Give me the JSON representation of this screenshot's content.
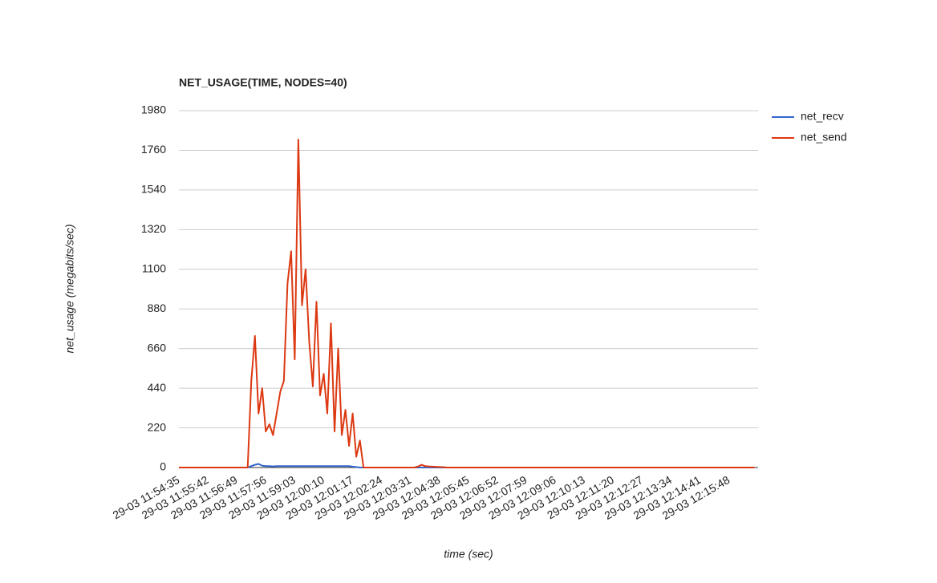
{
  "chart_data": {
    "type": "line",
    "title": "NET_USAGE(TIME, NODES=40)",
    "x_label": "time (sec)",
    "y_label": "net_usage (megabits/sec)",
    "categories": [
      "29-03 11:54:35",
      null,
      null,
      null,
      null,
      null,
      null,
      null,
      "29-03 11:55:42",
      null,
      null,
      null,
      null,
      null,
      null,
      null,
      "29-03 11:56:49",
      null,
      null,
      null,
      null,
      null,
      null,
      null,
      "29-03 11:57:56",
      null,
      null,
      null,
      null,
      null,
      null,
      null,
      "29-03 11:59:03",
      null,
      null,
      null,
      null,
      null,
      null,
      null,
      "29-03 12:00:10",
      null,
      null,
      null,
      null,
      null,
      null,
      null,
      "29-03 12:01:17",
      null,
      null,
      null,
      null,
      null,
      null,
      null,
      "29-03 12:02:24",
      null,
      null,
      null,
      null,
      null,
      null,
      null,
      "29-03 12:03:31",
      null,
      null,
      null,
      null,
      null,
      null,
      null,
      "29-03 12:04:38",
      null,
      null,
      null,
      null,
      null,
      null,
      null,
      "29-03 12:05:45",
      null,
      null,
      null,
      null,
      null,
      null,
      null,
      "29-03 12:06:52",
      null,
      null,
      null,
      null,
      null,
      null,
      null,
      "29-03 12:07:59",
      null,
      null,
      null,
      null,
      null,
      null,
      null,
      "29-03 12:09:06",
      null,
      null,
      null,
      null,
      null,
      null,
      null,
      "29-03 12:10:13",
      null,
      null,
      null,
      null,
      null,
      null,
      null,
      "29-03 12:11:20",
      null,
      null,
      null,
      null,
      null,
      null,
      null,
      "29-03 12:12:27",
      null,
      null,
      null,
      null,
      null,
      null,
      null,
      "29-03 12:13:34",
      null,
      null,
      null,
      null,
      null,
      null,
      null,
      "29-03 12:14:41",
      null,
      null,
      null,
      null,
      null,
      null,
      null,
      "29-03 12:15:48",
      null,
      null,
      null,
      null,
      null,
      null,
      null
    ],
    "series": [
      {
        "name": "net_recv",
        "color": "#3366cc",
        "values": [
          0,
          0,
          0,
          0,
          0,
          0,
          0,
          0,
          0,
          0,
          0,
          0,
          0,
          0,
          0,
          0,
          0,
          0,
          0,
          0,
          8,
          15,
          20,
          10,
          8,
          8,
          6,
          8,
          8,
          8,
          8,
          8,
          8,
          8,
          8,
          8,
          8,
          8,
          8,
          8,
          8,
          8,
          8,
          8,
          8,
          8,
          8,
          8,
          5,
          3,
          0,
          0,
          0,
          0,
          0,
          0,
          0,
          0,
          0,
          0,
          0,
          0,
          0,
          0,
          0,
          0,
          0,
          0,
          0,
          0,
          0,
          0,
          0,
          0,
          0,
          0,
          0,
          0,
          0,
          0,
          0,
          0,
          0,
          0,
          0,
          0,
          0,
          0,
          0,
          0,
          0,
          0,
          0,
          0,
          0,
          0,
          0,
          0,
          0,
          0,
          0,
          0,
          0,
          0,
          0,
          0,
          0,
          0,
          0,
          0,
          0,
          0,
          0,
          0,
          0,
          0,
          0,
          0,
          0,
          0,
          0,
          0,
          0,
          0,
          0,
          0,
          0,
          0,
          0,
          0,
          0,
          0,
          0,
          0,
          0,
          0,
          0,
          0,
          0,
          0,
          0,
          0,
          0,
          0,
          0,
          0,
          0,
          0,
          0,
          0,
          0,
          0,
          0,
          0,
          0,
          0,
          0,
          0,
          0,
          0
        ]
      },
      {
        "name": "net_send",
        "color": "#dc3912",
        "values": [
          0,
          0,
          0,
          0,
          0,
          0,
          0,
          0,
          0,
          0,
          0,
          0,
          0,
          0,
          0,
          0,
          0,
          0,
          0,
          0,
          480,
          730,
          300,
          440,
          200,
          240,
          180,
          300,
          420,
          480,
          1020,
          1200,
          600,
          1820,
          900,
          1100,
          700,
          450,
          920,
          400,
          520,
          300,
          800,
          200,
          660,
          180,
          320,
          120,
          300,
          60,
          150,
          0,
          0,
          0,
          0,
          0,
          0,
          0,
          0,
          0,
          0,
          0,
          0,
          0,
          0,
          0,
          5,
          15,
          8,
          6,
          5,
          4,
          3,
          2,
          0,
          0,
          0,
          0,
          0,
          0,
          0,
          0,
          0,
          0,
          0,
          0,
          0,
          0,
          0,
          0,
          0,
          0,
          0,
          0,
          0,
          0,
          0,
          0,
          0,
          0,
          0,
          0,
          0,
          0,
          0,
          0,
          0,
          0,
          0,
          0,
          0,
          0,
          0,
          0,
          0,
          0,
          0,
          0,
          0,
          0,
          0,
          0,
          0,
          0,
          0,
          0,
          0,
          0,
          0,
          0,
          0,
          0,
          0,
          0,
          0,
          0,
          0,
          0,
          0,
          0,
          0,
          0,
          0,
          0,
          0,
          0,
          0,
          0,
          0,
          0,
          0,
          0,
          0,
          0,
          0,
          0,
          0,
          0,
          0,
          0
        ]
      }
    ],
    "ylim": [
      0,
      1980
    ],
    "yticks": [
      0,
      220,
      440,
      660,
      880,
      1100,
      1320,
      1540,
      1760,
      1980
    ],
    "grid": true,
    "legend": "right"
  }
}
